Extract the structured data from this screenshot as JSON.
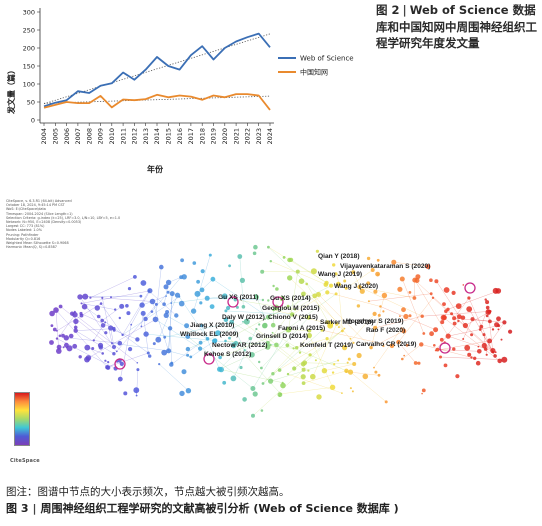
{
  "chart_data": {
    "type": "line",
    "x": [
      "2004",
      "2005",
      "2006",
      "2007",
      "2008",
      "2009",
      "2010",
      "2011",
      "2012",
      "2013",
      "2014",
      "2015",
      "2016",
      "2017",
      "2018",
      "2019",
      "2020",
      "2021",
      "2022",
      "2023",
      "2024"
    ],
    "series": [
      {
        "name": "Web of Science",
        "color": "#3b6fb5",
        "values": [
          38,
          48,
          55,
          80,
          75,
          95,
          102,
          132,
          112,
          140,
          175,
          150,
          140,
          180,
          205,
          168,
          200,
          218,
          230,
          240,
          202
        ]
      },
      {
        "name": "中国知网",
        "color": "#e98a2e",
        "values": [
          34,
          42,
          50,
          47,
          47,
          67,
          35,
          57,
          55,
          58,
          70,
          63,
          68,
          65,
          56,
          68,
          63,
          72,
          72,
          68,
          28
        ]
      }
    ],
    "xlabel": "年份",
    "ylabel": "发文量（篇）",
    "ylim": [
      0,
      300
    ],
    "yticks": [
      0,
      50,
      100,
      150,
      200,
      250,
      300
    ],
    "legend_position": "center-right",
    "trendline": true
  },
  "figure2_caption": {
    "label": "图 2",
    "separator": "|",
    "text": "Web of Science 数据库和中国知网中周围神经组织工程学研究年度发文量"
  },
  "network": {
    "meta_lines": [
      "CiteSpace, v. 6.3.R1 (64-bit) Advanced",
      "October 18, 2024, 9:45:14 PM CST",
      "WoS: E:\\CiteSpace\\data",
      "Timespan: 2004-2024 (Slice Length=1)",
      "Selection Criteria: g-index (k=25), LRF=3.0, L/N=10, LBY=5, e=1.0",
      "Network: N=950, E=2408 (Density=0.0053)",
      "Largest CC: 773 (81%)",
      "Nodes Labeled: 1.0%",
      "Pruning: Pathfinder",
      "Modularity Q=0.816",
      "Weighted Mean Silhouette S=0.9068",
      "Harmonic Mean(Q, S)=0.8587"
    ],
    "labels": [
      "Qian Y (2018)",
      "Vijayavenkataraman S (2020)",
      "Wang J (2019)",
      "Gu XS (2011)",
      "Gu XS (2014)",
      "Georgiou M (2015)",
      "Wang J (2020)",
      "Chiono V (2015)",
      "Daly W (2012)",
      "Sarker MD (2018)",
      "Houshyar S (2019)",
      "Jiang X (2010)",
      "Faroni A (2015)",
      "Rao F (2020)",
      "Whitlock EL (2009)",
      "Grinsell D (2014)",
      "Carvalho CR (2019)",
      "Nectow AR (2012)",
      "Komfeld T (2019)",
      "Kehoe S (2012)"
    ],
    "logo_text": "CiteSpace"
  },
  "note": "图注：图谱中节点的大小表示频次，节点越大被引频次越高。",
  "figure3_caption": {
    "label": "图 3",
    "separator": "|",
    "text": "周围神经组织工程学研究的文献高被引分析 (Web of Science 数据库 )"
  }
}
